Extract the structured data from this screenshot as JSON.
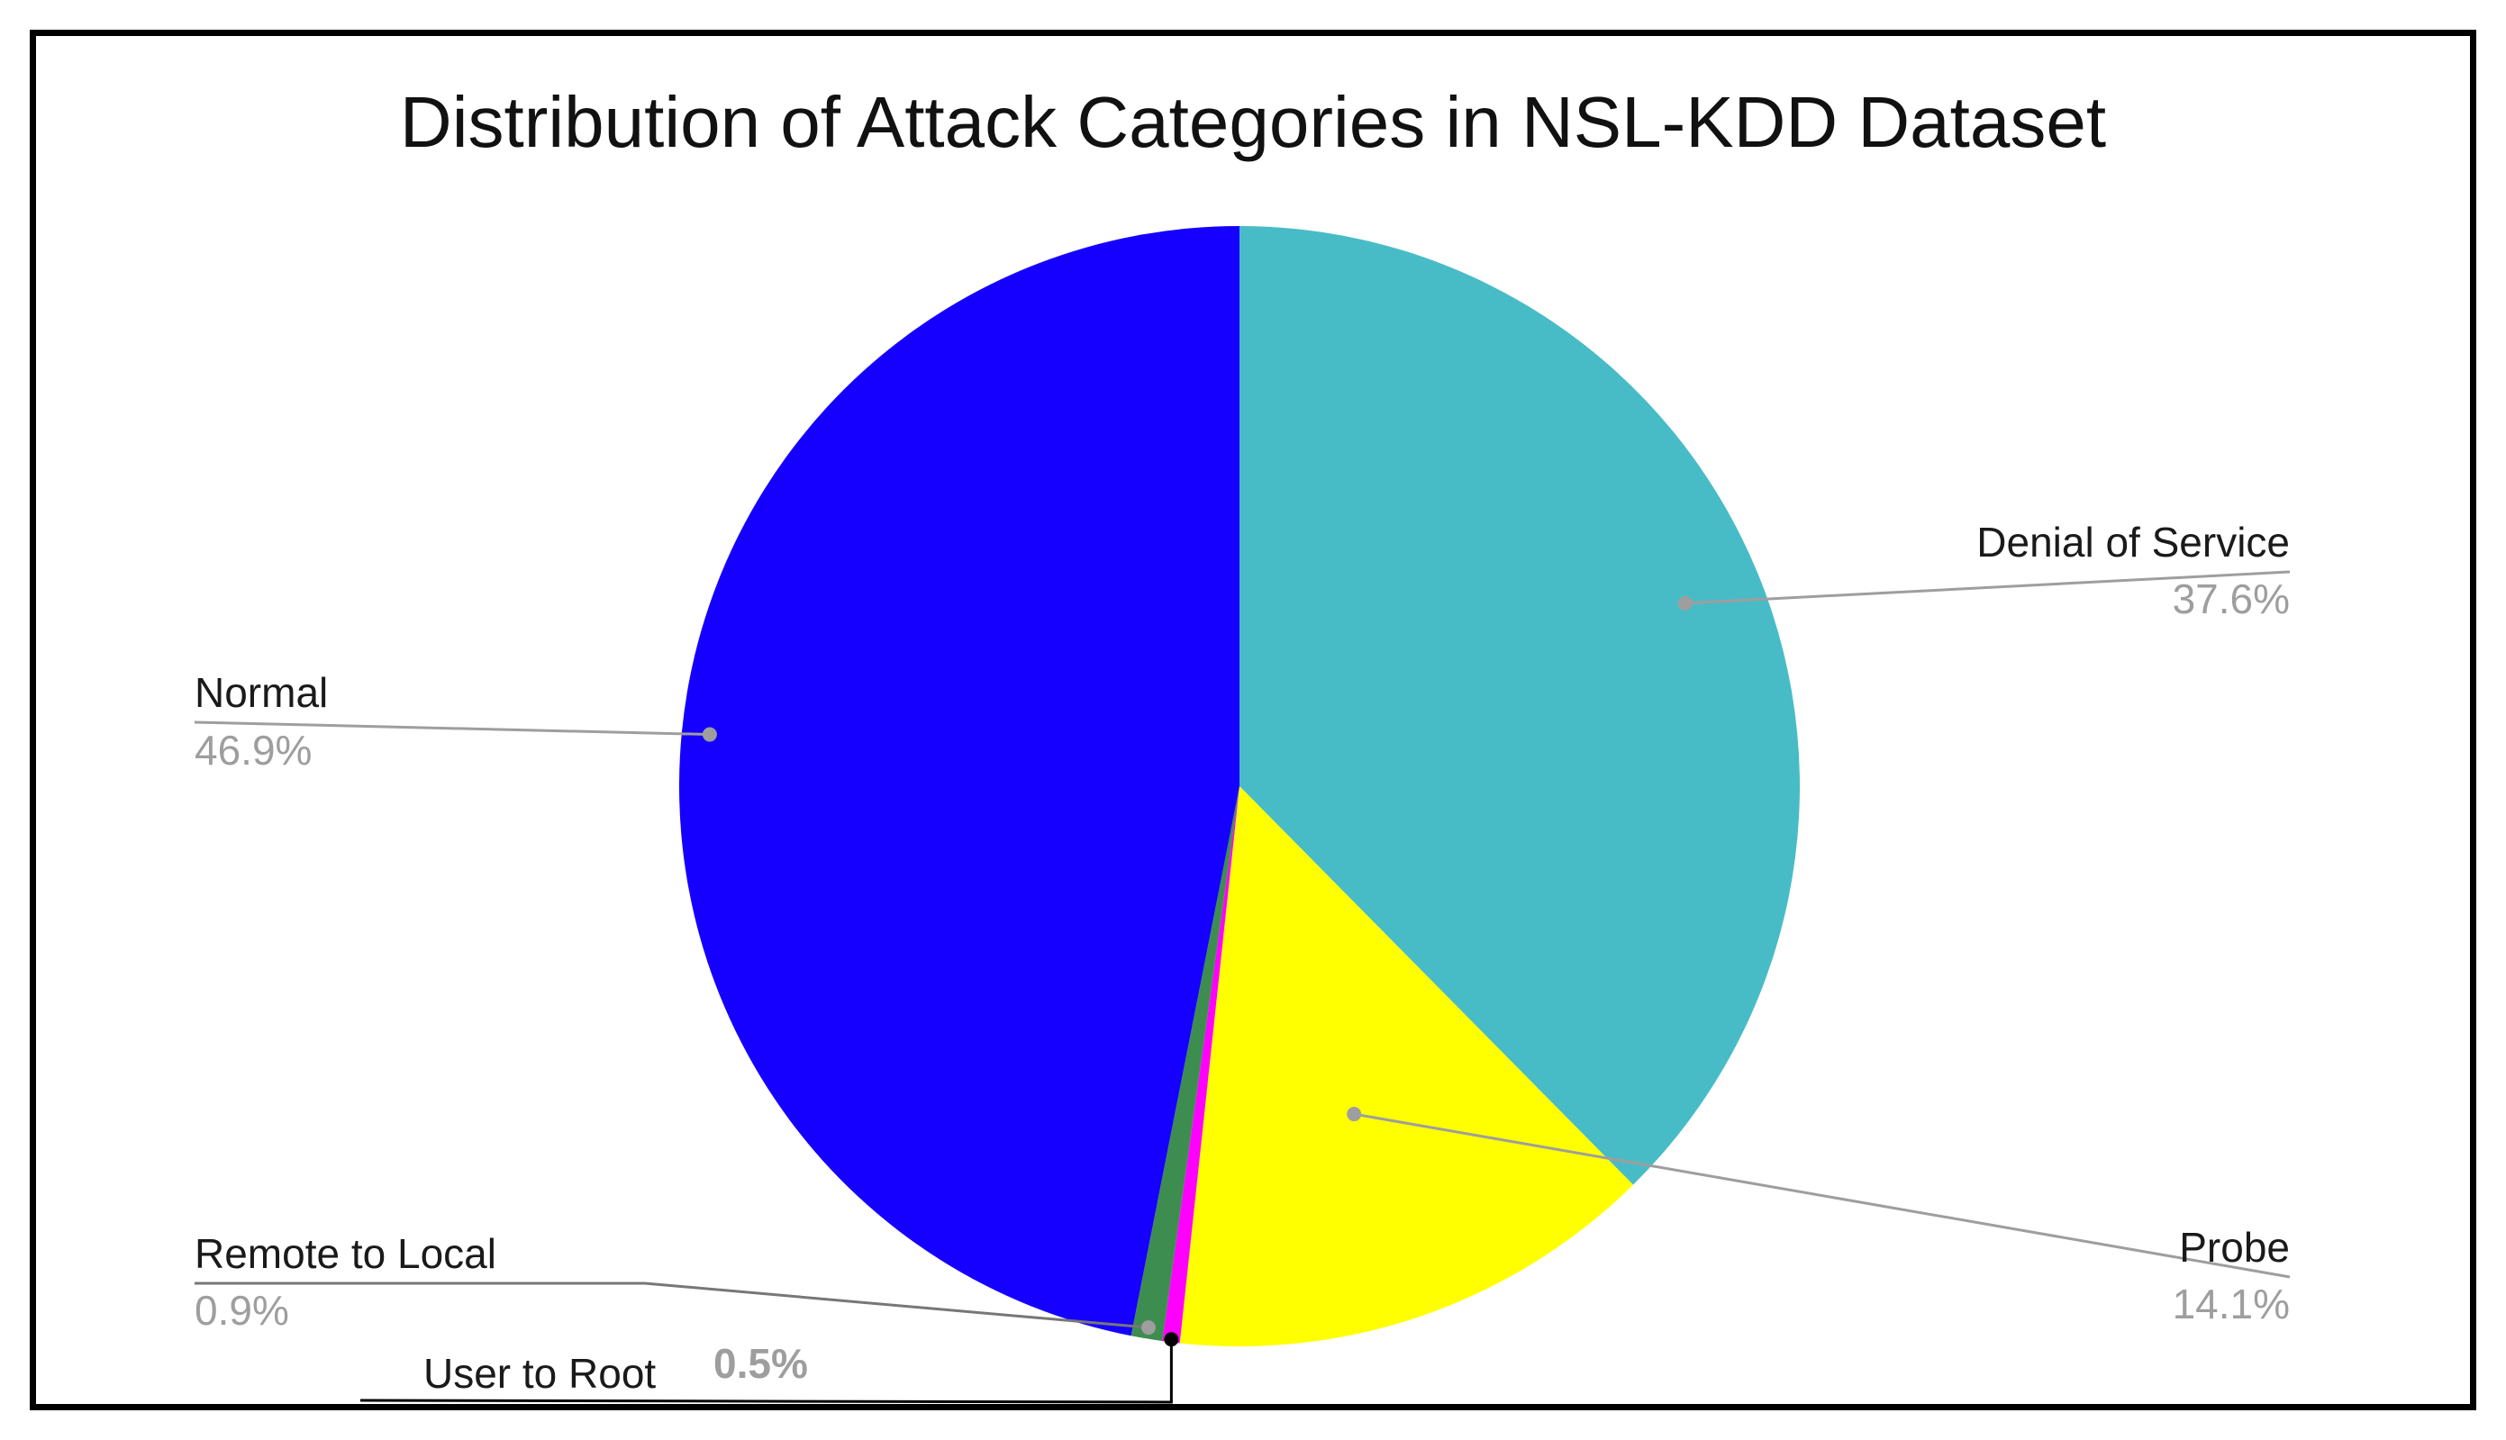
{
  "chart_data": {
    "type": "pie",
    "title": "Distribution of Attack Categories in NSL-KDD Dataset",
    "start_angle_deg": 0,
    "direction": "clockwise",
    "slices": [
      {
        "name": "Denial of Service",
        "value": 37.6,
        "percent_label": "37.6%",
        "color": "#48bcc6"
      },
      {
        "name": "Probe",
        "value": 14.1,
        "percent_label": "14.1%",
        "color": "#ffff00"
      },
      {
        "name": "User to Root",
        "value": 0.5,
        "percent_label": "0.5%",
        "color": "#ff00ff"
      },
      {
        "name": "Remote to Local",
        "value": 0.9,
        "percent_label": "0.9%",
        "color": "#3e8d50"
      },
      {
        "name": "Normal",
        "value": 46.9,
        "percent_label": "46.9%",
        "color": "#1500ff"
      }
    ],
    "legend": "none",
    "labels": "outside-with-leader-lines"
  }
}
